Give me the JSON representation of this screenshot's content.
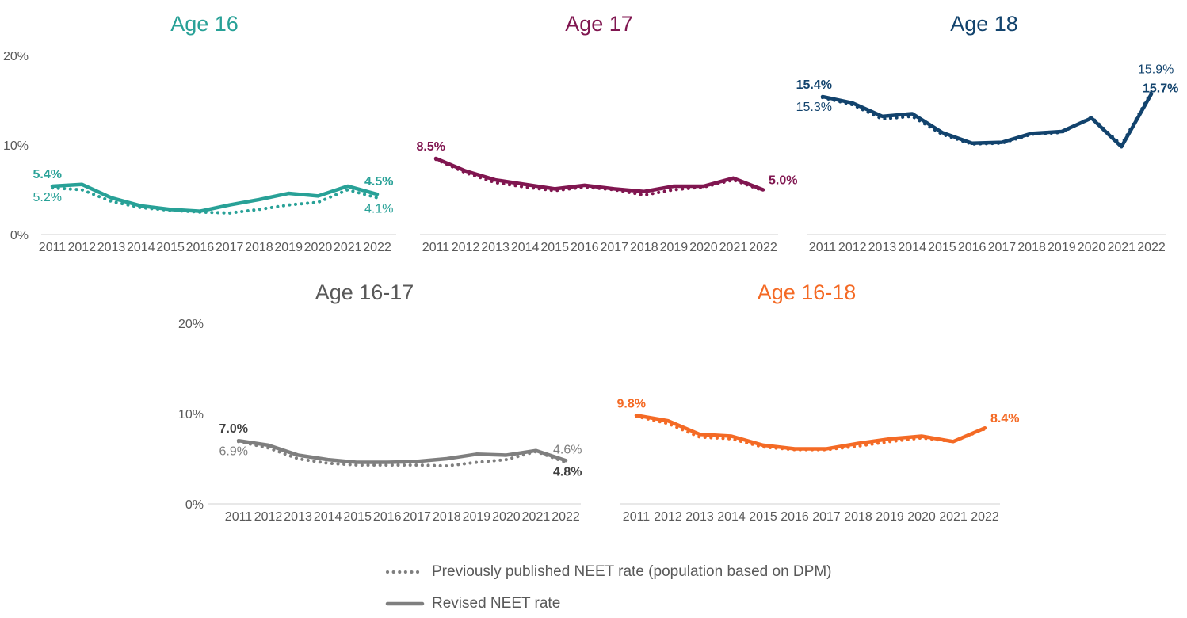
{
  "page": {
    "background": "#ffffff"
  },
  "axis": {
    "years": [
      "2011",
      "2012",
      "2013",
      "2014",
      "2015",
      "2016",
      "2017",
      "2018",
      "2019",
      "2020",
      "2021",
      "2022"
    ],
    "y_ticks": [
      {
        "label": "0%",
        "value": 0
      },
      {
        "label": "10%",
        "value": 10
      },
      {
        "label": "20%",
        "value": 20
      }
    ],
    "line_color": "#d9d9d9",
    "text_color": "#595959"
  },
  "legend": {
    "text_color": "#595959",
    "symbol_color": "#7f7f7f",
    "items": [
      {
        "label": "Previously published NEET rate (population based on DPM)",
        "style": "dotted"
      },
      {
        "label": "Revised NEET rate",
        "style": "solid"
      }
    ]
  },
  "chart_data": [
    {
      "type": "line",
      "title": "Age 16",
      "color": "#28A197",
      "title_color": "#28A197",
      "show_y_axis": true,
      "ylim": [
        0,
        20
      ],
      "x": [
        2011,
        2012,
        2013,
        2014,
        2015,
        2016,
        2017,
        2018,
        2019,
        2020,
        2021,
        2022
      ],
      "series": [
        {
          "name": "Previously published NEET rate (population based on DPM)",
          "style": "dotted",
          "values": [
            5.2,
            5.0,
            3.7,
            3.0,
            2.7,
            2.5,
            2.4,
            2.8,
            3.3,
            3.6,
            5.0,
            4.1
          ]
        },
        {
          "name": "Revised NEET rate",
          "style": "solid",
          "values": [
            5.4,
            5.6,
            4.1,
            3.2,
            2.8,
            2.6,
            3.3,
            3.9,
            4.6,
            4.3,
            5.4,
            4.5
          ]
        }
      ],
      "point_labels": [
        {
          "text": "5.4%",
          "bold": true,
          "series": "solid",
          "pos": "start-top"
        },
        {
          "text": "5.2%",
          "bold": false,
          "series": "dotted",
          "pos": "start-bottom"
        },
        {
          "text": "4.5%",
          "bold": true,
          "series": "solid",
          "pos": "end-top"
        },
        {
          "text": "4.1%",
          "bold": false,
          "series": "dotted",
          "pos": "end-bottom"
        }
      ]
    },
    {
      "type": "line",
      "title": "Age 17",
      "color": "#801650",
      "title_color": "#801650",
      "show_y_axis": false,
      "ylim": [
        0,
        20
      ],
      "x": [
        2011,
        2012,
        2013,
        2014,
        2015,
        2016,
        2017,
        2018,
        2019,
        2020,
        2021,
        2022
      ],
      "series": [
        {
          "name": "Previously published NEET rate (population based on DPM)",
          "style": "dotted",
          "values": [
            8.4,
            6.9,
            5.8,
            5.3,
            4.9,
            5.3,
            5.0,
            4.4,
            5.0,
            5.3,
            6.1,
            4.9
          ]
        },
        {
          "name": "Revised NEET rate",
          "style": "solid",
          "values": [
            8.5,
            7.1,
            6.1,
            5.6,
            5.1,
            5.5,
            5.1,
            4.8,
            5.4,
            5.4,
            6.3,
            5.0
          ]
        }
      ],
      "point_labels": [
        {
          "text": "8.5%",
          "bold": true,
          "series": "solid",
          "pos": "start-top"
        },
        {
          "text": "5.0%",
          "bold": true,
          "series": "solid",
          "pos": "end-right"
        }
      ]
    },
    {
      "type": "line",
      "title": "Age 18",
      "color": "#12436D",
      "title_color": "#12436D",
      "show_y_axis": false,
      "ylim": [
        0,
        20
      ],
      "x": [
        2011,
        2012,
        2013,
        2014,
        2015,
        2016,
        2017,
        2018,
        2019,
        2020,
        2021,
        2022
      ],
      "series": [
        {
          "name": "Previously published NEET rate (population based on DPM)",
          "style": "dotted",
          "values": [
            15.3,
            14.5,
            12.9,
            13.2,
            11.2,
            10.1,
            10.2,
            11.2,
            11.4,
            13.1,
            10.0,
            15.9
          ]
        },
        {
          "name": "Revised NEET rate",
          "style": "solid",
          "values": [
            15.4,
            14.7,
            13.2,
            13.5,
            11.4,
            10.2,
            10.3,
            11.3,
            11.5,
            13.0,
            9.8,
            15.7
          ]
        }
      ],
      "point_labels": [
        {
          "text": "15.4%",
          "bold": true,
          "series": "solid",
          "pos": "start-top"
        },
        {
          "text": "15.3%",
          "bold": false,
          "series": "dotted",
          "pos": "start-bottom"
        },
        {
          "text": "15.9%",
          "bold": false,
          "series": "dotted",
          "pos": "end-stack-top"
        },
        {
          "text": "15.7%",
          "bold": true,
          "series": "solid",
          "pos": "end-stack-bottom"
        }
      ]
    },
    {
      "type": "line",
      "title": "Age 16-17",
      "color": "#7f7f7f",
      "title_color": "#595959",
      "show_y_axis": true,
      "ylim": [
        0,
        20
      ],
      "x": [
        2011,
        2012,
        2013,
        2014,
        2015,
        2016,
        2017,
        2018,
        2019,
        2020,
        2021,
        2022
      ],
      "series": [
        {
          "name": "Previously published NEET rate (population based on DPM)",
          "style": "dotted",
          "values": [
            6.9,
            6.2,
            5.0,
            4.5,
            4.3,
            4.3,
            4.3,
            4.2,
            4.6,
            4.9,
            5.8,
            4.6
          ]
        },
        {
          "name": "Revised NEET rate",
          "style": "solid",
          "values": [
            7.0,
            6.5,
            5.4,
            4.9,
            4.6,
            4.6,
            4.7,
            5.0,
            5.5,
            5.4,
            5.9,
            4.8
          ]
        }
      ],
      "point_labels": [
        {
          "text": "7.0%",
          "bold": true,
          "series": "solid",
          "pos": "start-top",
          "color": "#404040"
        },
        {
          "text": "6.9%",
          "bold": false,
          "series": "dotted",
          "pos": "start-bottom",
          "color": "#7f7f7f"
        },
        {
          "text": "4.6%",
          "bold": false,
          "series": "dotted",
          "pos": "end-top",
          "color": "#7f7f7f"
        },
        {
          "text": "4.8%",
          "bold": true,
          "series": "solid",
          "pos": "end-bottom",
          "color": "#404040"
        }
      ]
    },
    {
      "type": "line",
      "title": "Age 16-18",
      "color": "#F46A25",
      "title_color": "#F46A25",
      "show_y_axis": false,
      "ylim": [
        0,
        20
      ],
      "x": [
        2011,
        2012,
        2013,
        2014,
        2015,
        2016,
        2017,
        2018,
        2019,
        2020,
        2021,
        2022
      ],
      "series": [
        {
          "name": "Previously published NEET rate (population based on DPM)",
          "style": "dotted",
          "values": [
            9.7,
            8.9,
            7.4,
            7.2,
            6.3,
            6.0,
            6.0,
            6.4,
            6.9,
            7.3,
            6.9,
            8.3
          ]
        },
        {
          "name": "Revised NEET rate",
          "style": "solid",
          "values": [
            9.8,
            9.2,
            7.7,
            7.5,
            6.5,
            6.1,
            6.1,
            6.7,
            7.2,
            7.5,
            6.9,
            8.4
          ]
        }
      ],
      "point_labels": [
        {
          "text": "9.8%",
          "bold": true,
          "series": "solid",
          "pos": "start-top"
        },
        {
          "text": "8.4%",
          "bold": true,
          "series": "solid",
          "pos": "end-right"
        }
      ]
    }
  ]
}
